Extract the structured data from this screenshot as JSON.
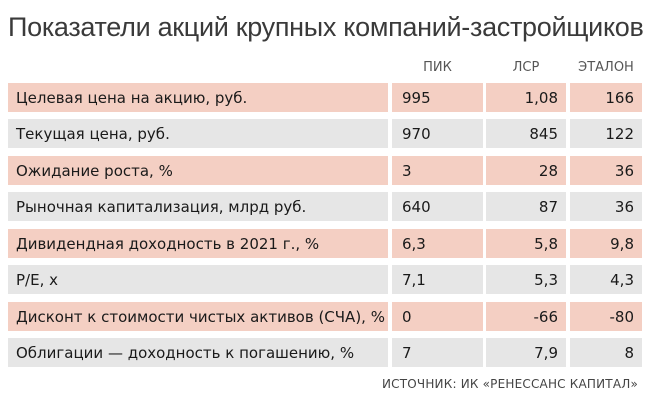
{
  "title": "Показатели акций крупных компаний-застройщиков",
  "columns": [
    "ПИК",
    "ЛСР",
    "ЭТАЛОН"
  ],
  "rows": [
    {
      "label": "Целевая цена на акцию, руб.",
      "values": [
        "995",
        "1,08",
        "166"
      ],
      "shade": "pink"
    },
    {
      "label": "Текущая цена, руб.",
      "values": [
        "970",
        "845",
        "122"
      ],
      "shade": "grey"
    },
    {
      "label": "Ожидание роста, %",
      "values": [
        "3",
        "28",
        "36"
      ],
      "shade": "pink"
    },
    {
      "label": "Рыночная капитализация, млрд руб.",
      "values": [
        "640",
        "87",
        "36"
      ],
      "shade": "grey"
    },
    {
      "label": "Дивидендная доходность в 2021 г., %",
      "values": [
        "6,3",
        "5,8",
        "9,8"
      ],
      "shade": "pink"
    },
    {
      "label": "P/E, x",
      "values": [
        "7,1",
        "5,3",
        "4,3"
      ],
      "shade": "grey"
    },
    {
      "label": "Дисконт к стоимости чистых активов (СЧА), %",
      "values": [
        "0",
        "-66",
        "-80"
      ],
      "shade": "pink"
    },
    {
      "label": "Облигации — доходность к погашению, %",
      "values": [
        "7",
        "7,9",
        "8"
      ],
      "shade": "grey"
    }
  ],
  "source": "ИСТОЧНИК: ИК «РЕНЕССАНС КАПИТАЛ»",
  "colors": {
    "pink": "#f4cfc3",
    "grey": "#e6e6e6"
  }
}
